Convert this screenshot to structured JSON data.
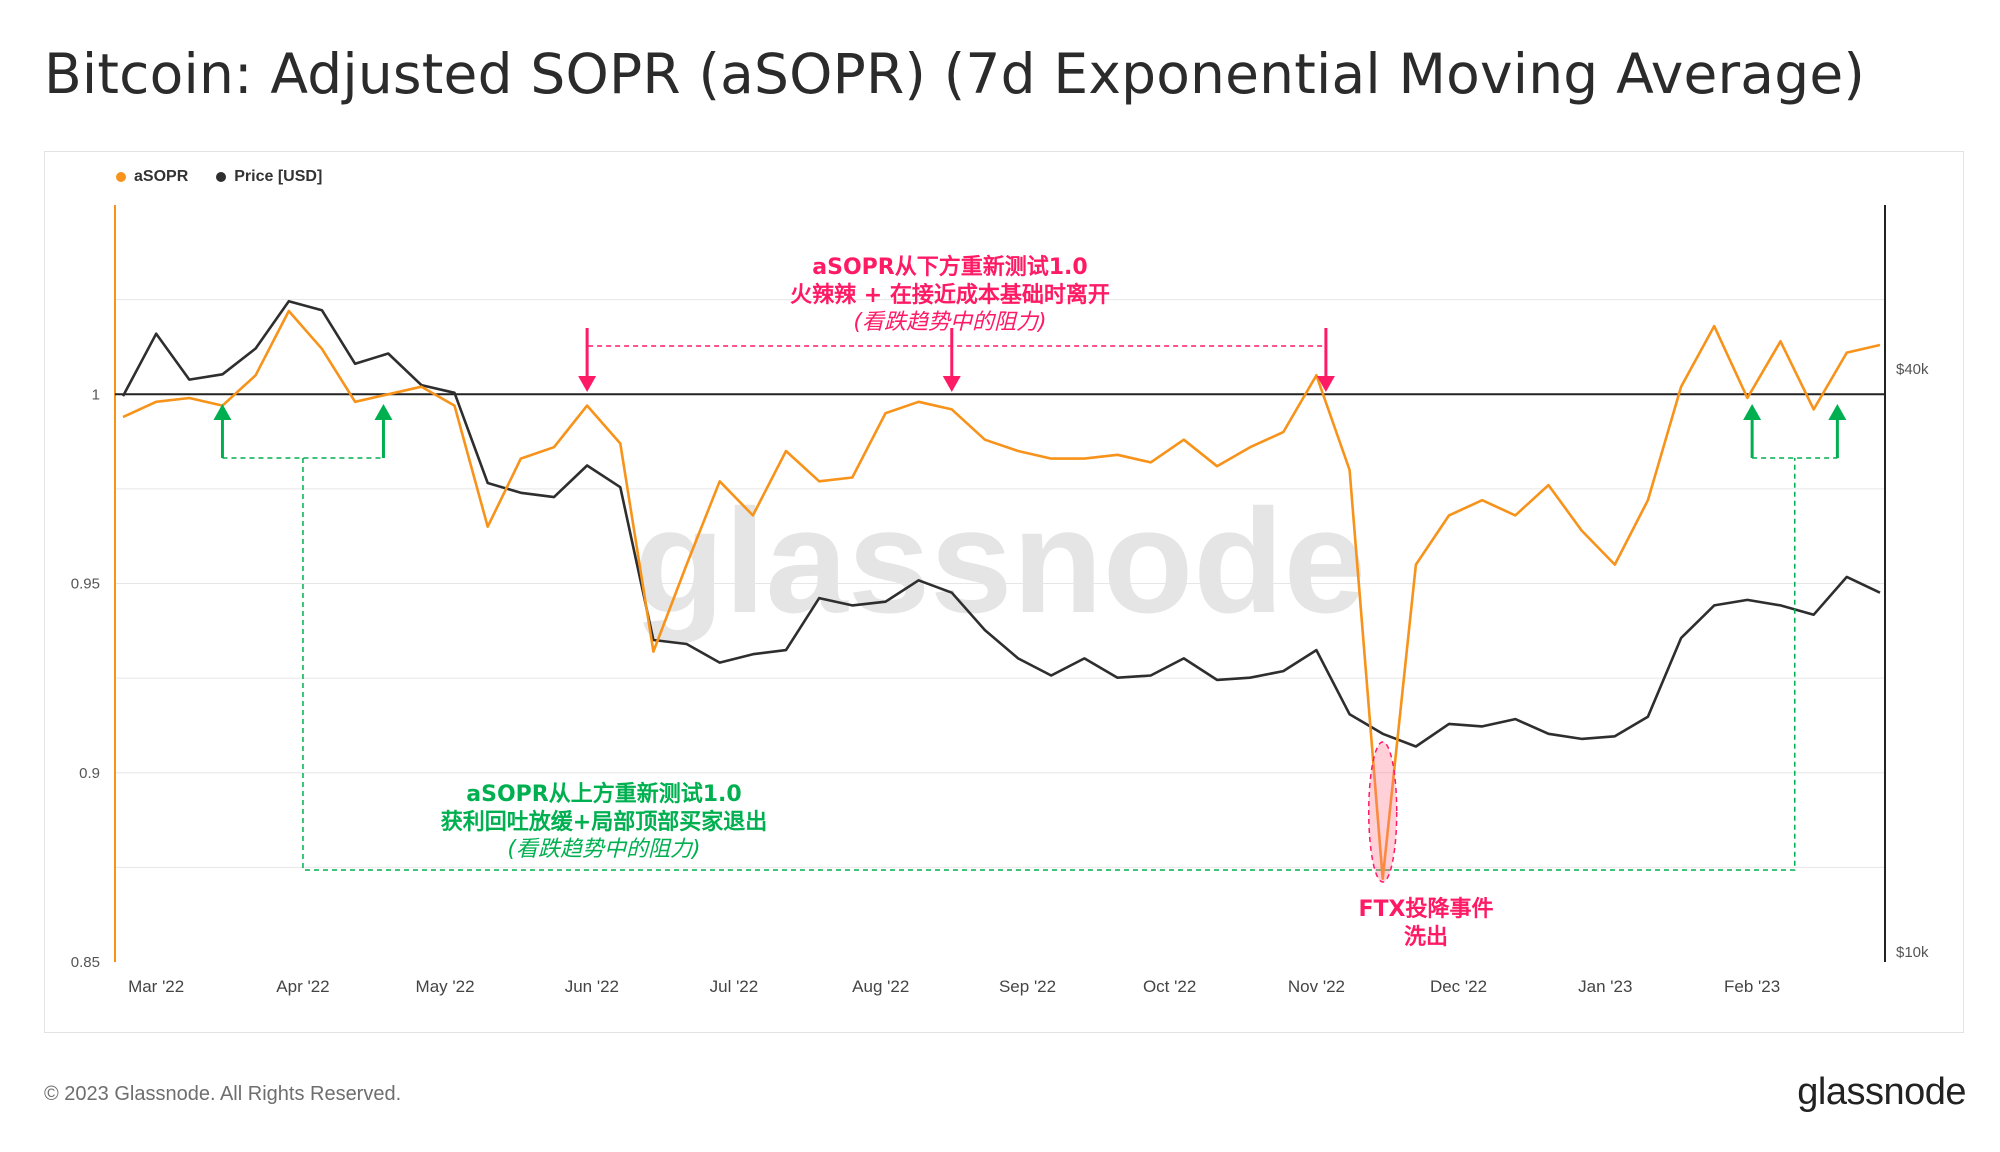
{
  "title": "Bitcoin: Adjusted SOPR (aSOPR) (7d Exponential Moving Average)",
  "footer": "© 2023 Glassnode. All Rights Reserved.",
  "brand": "glassnode",
  "watermark": "glassnode",
  "colors": {
    "asopr": "#f7931a",
    "price": "#2e2e2e",
    "pink": "#ff1a66",
    "green": "#00b050",
    "ref": "#222222"
  },
  "legend": [
    {
      "label": "aSOPR",
      "color": "#f7931a"
    },
    {
      "label": "Price [USD]",
      "color": "#2e2e2e"
    }
  ],
  "annotations": {
    "top": {
      "line1": "aSOPR从下方重新测试1.0",
      "line2": "火辣辣 + 在接近成本基础时离开",
      "line3": "(看跌趋势中的阻力)"
    },
    "bottom": {
      "line1": "aSOPR从上方重新测试1.0",
      "line2": "获利回吐放缓+局部顶部买家退出",
      "line3": "(看跌趋势中的阻力)"
    },
    "ftx": {
      "line1": "FTX投降事件",
      "line2": "洗出"
    }
  },
  "chart_data": {
    "type": "line",
    "x_range": [
      "2022-02-22",
      "2023-02-28"
    ],
    "x_ticks": [
      "Mar '22",
      "Apr '22",
      "May '22",
      "Jun '22",
      "Jul '22",
      "Aug '22",
      "Sep '22",
      "Oct '22",
      "Nov '22",
      "Dec '22",
      "Jan '23",
      "Feb '23"
    ],
    "y_left": {
      "label": "",
      "ticks": [
        "0.85",
        "0.9",
        "0.95",
        "1"
      ],
      "range": [
        0.85,
        1.05
      ]
    },
    "y_right": {
      "label": "",
      "ticks": [
        "$10k",
        "$40k"
      ],
      "scale": "log"
    },
    "reference_line": 1.0,
    "series": [
      {
        "name": "aSOPR",
        "x": [
          "2022-02-22",
          "2022-03-01",
          "2022-03-08",
          "2022-03-15",
          "2022-03-22",
          "2022-03-29",
          "2022-04-05",
          "2022-04-12",
          "2022-04-19",
          "2022-04-26",
          "2022-05-03",
          "2022-05-10",
          "2022-05-17",
          "2022-05-24",
          "2022-05-31",
          "2022-06-07",
          "2022-06-14",
          "2022-06-21",
          "2022-06-28",
          "2022-07-05",
          "2022-07-12",
          "2022-07-19",
          "2022-07-26",
          "2022-08-02",
          "2022-08-09",
          "2022-08-16",
          "2022-08-23",
          "2022-08-30",
          "2022-09-06",
          "2022-09-13",
          "2022-09-20",
          "2022-09-27",
          "2022-10-04",
          "2022-10-11",
          "2022-10-18",
          "2022-10-25",
          "2022-11-01",
          "2022-11-08",
          "2022-11-15",
          "2022-11-22",
          "2022-11-29",
          "2022-12-06",
          "2022-12-13",
          "2022-12-20",
          "2022-12-27",
          "2023-01-03",
          "2023-01-10",
          "2023-01-17",
          "2023-01-24",
          "2023-01-31",
          "2023-02-07",
          "2023-02-14",
          "2023-02-21",
          "2023-02-28"
        ],
        "values": [
          0.994,
          0.998,
          0.999,
          0.997,
          1.005,
          1.022,
          1.012,
          0.998,
          1.0,
          1.002,
          0.997,
          0.965,
          0.983,
          0.986,
          0.997,
          0.987,
          0.932,
          0.955,
          0.977,
          0.968,
          0.985,
          0.977,
          0.978,
          0.995,
          0.998,
          0.996,
          0.988,
          0.985,
          0.983,
          0.983,
          0.984,
          0.982,
          0.988,
          0.981,
          0.986,
          0.99,
          1.005,
          0.98,
          0.872,
          0.955,
          0.968,
          0.972,
          0.968,
          0.976,
          0.964,
          0.955,
          0.972,
          1.002,
          1.018,
          0.999,
          1.014,
          0.996,
          1.011,
          1.013
        ]
      },
      {
        "name": "Price [USD]",
        "x": [
          "2022-02-22",
          "2022-03-01",
          "2022-03-08",
          "2022-03-15",
          "2022-03-22",
          "2022-03-29",
          "2022-04-05",
          "2022-04-12",
          "2022-04-19",
          "2022-04-26",
          "2022-05-03",
          "2022-05-10",
          "2022-05-17",
          "2022-05-24",
          "2022-05-31",
          "2022-06-07",
          "2022-06-14",
          "2022-06-21",
          "2022-06-28",
          "2022-07-05",
          "2022-07-12",
          "2022-07-19",
          "2022-07-26",
          "2022-08-02",
          "2022-08-09",
          "2022-08-16",
          "2022-08-23",
          "2022-08-30",
          "2022-09-06",
          "2022-09-13",
          "2022-09-20",
          "2022-09-27",
          "2022-10-04",
          "2022-10-11",
          "2022-10-18",
          "2022-10-25",
          "2022-11-01",
          "2022-11-08",
          "2022-11-15",
          "2022-11-22",
          "2022-11-29",
          "2022-12-06",
          "2022-12-13",
          "2022-12-20",
          "2022-12-27",
          "2023-01-03",
          "2023-01-10",
          "2023-01-17",
          "2023-01-24",
          "2023-01-31",
          "2023-02-07",
          "2023-02-14",
          "2023-02-21",
          "2023-02-28"
        ],
        "values": [
          37500,
          43500,
          39000,
          39500,
          42000,
          47000,
          46000,
          40500,
          41500,
          38500,
          37800,
          30500,
          29800,
          29500,
          31800,
          30200,
          21000,
          20800,
          19900,
          20300,
          20500,
          23200,
          22800,
          23000,
          24200,
          23500,
          21500,
          20100,
          19300,
          20100,
          19200,
          19300,
          20100,
          19100,
          19200,
          19500,
          20500,
          17600,
          16800,
          16300,
          17200,
          17100,
          17400,
          16800,
          16600,
          16700,
          17500,
          21100,
          22800,
          23100,
          22800,
          22300,
          24400,
          23500
        ]
      }
    ]
  }
}
